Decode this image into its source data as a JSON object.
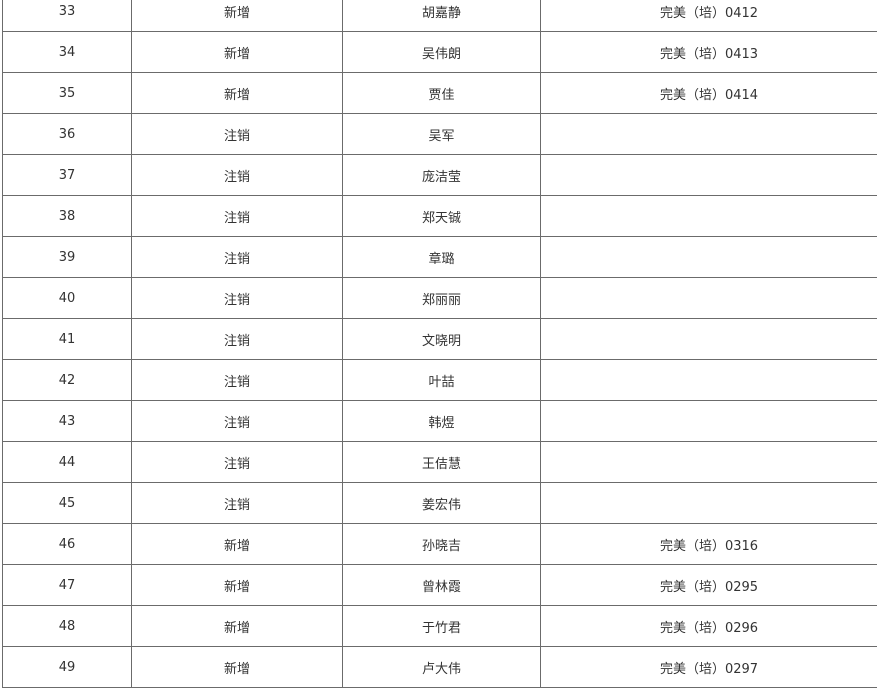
{
  "rows": [
    {
      "no": "33",
      "type": "新增",
      "name": "胡嘉静",
      "cert": "完美（培）0412"
    },
    {
      "no": "34",
      "type": "新增",
      "name": "吴伟朗",
      "cert": "完美（培）0413"
    },
    {
      "no": "35",
      "type": "新增",
      "name": "贾佳",
      "cert": "完美（培）0414"
    },
    {
      "no": "36",
      "type": "注销",
      "name": "吴军",
      "cert": ""
    },
    {
      "no": "37",
      "type": "注销",
      "name": "庞洁莹",
      "cert": ""
    },
    {
      "no": "38",
      "type": "注销",
      "name": "郑天铖",
      "cert": ""
    },
    {
      "no": "39",
      "type": "注销",
      "name": "章璐",
      "cert": ""
    },
    {
      "no": "40",
      "type": "注销",
      "name": "郑丽丽",
      "cert": ""
    },
    {
      "no": "41",
      "type": "注销",
      "name": "文晓明",
      "cert": ""
    },
    {
      "no": "42",
      "type": "注销",
      "name": "叶喆",
      "cert": ""
    },
    {
      "no": "43",
      "type": "注销",
      "name": "韩煜",
      "cert": ""
    },
    {
      "no": "44",
      "type": "注销",
      "name": "王佶慧",
      "cert": ""
    },
    {
      "no": "45",
      "type": "注销",
      "name": "姜宏伟",
      "cert": ""
    },
    {
      "no": "46",
      "type": "新增",
      "name": "孙晓吉",
      "cert": "完美（培）0316"
    },
    {
      "no": "47",
      "type": "新增",
      "name": "曾林霞",
      "cert": "完美（培）0295"
    },
    {
      "no": "48",
      "type": "新增",
      "name": "于竹君",
      "cert": "完美（培）0296"
    },
    {
      "no": "49",
      "type": "新增",
      "name": "卢大伟",
      "cert": "完美（培）0297"
    }
  ]
}
